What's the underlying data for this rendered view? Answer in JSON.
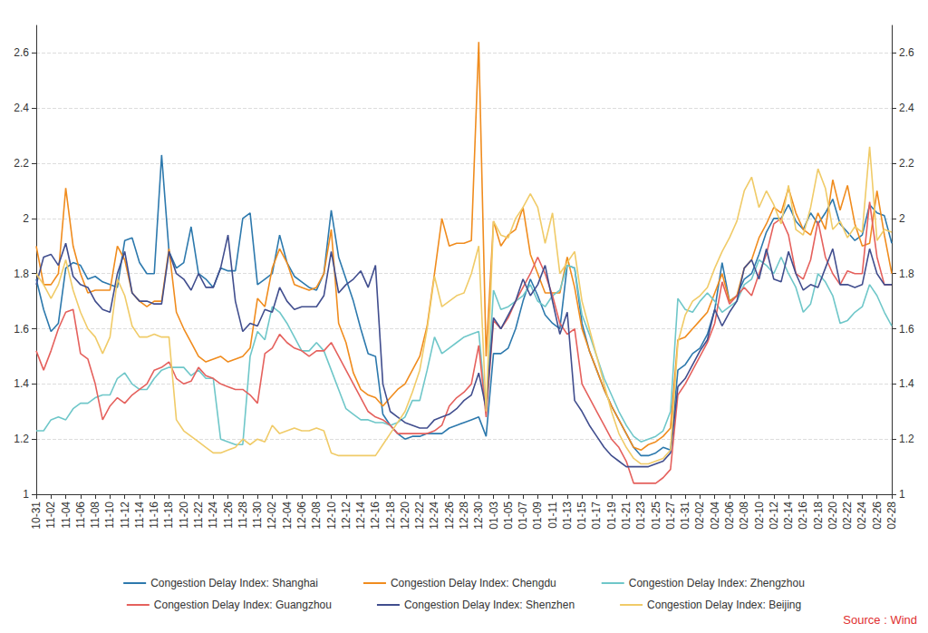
{
  "chart_data": {
    "type": "line",
    "annotation": "Source : Wind",
    "categories": [
      "10-31",
      null,
      "11-02",
      null,
      "11-04",
      null,
      "11-06",
      null,
      "11-08",
      null,
      "11-10",
      null,
      "11-12",
      null,
      "11-14",
      null,
      "11-16",
      null,
      "11-18",
      null,
      "11-20",
      null,
      "11-22",
      null,
      "11-24",
      null,
      "11-26",
      null,
      "11-28",
      null,
      "11-30",
      null,
      "12-02",
      null,
      "12-04",
      null,
      "12-06",
      null,
      "12-08",
      null,
      "12-10",
      null,
      "12-12",
      null,
      "12-14",
      null,
      "12-16",
      null,
      "12-18",
      null,
      "12-20",
      null,
      "12-22",
      null,
      "12-24",
      null,
      "12-26",
      null,
      "12-28",
      null,
      "12-30",
      null,
      "01-03",
      null,
      "01-05",
      null,
      "01-07",
      null,
      "01-09",
      null,
      "01-11",
      null,
      "01-13",
      null,
      "01-15",
      null,
      "01-17",
      null,
      "01-19",
      null,
      "01-21",
      null,
      "01-23",
      null,
      "01-25",
      null,
      "01-27",
      null,
      "01-31",
      null,
      "02-02",
      null,
      "02-04",
      null,
      "02-06",
      null,
      "02-08",
      null,
      "02-10",
      null,
      "02-12",
      null,
      "02-14",
      null,
      "02-16",
      null,
      "02-18",
      null,
      "02-20",
      null,
      "02-22",
      null,
      "02-24",
      null,
      "02-26",
      null,
      "02-28"
    ],
    "series": [
      {
        "name": "Congestion Delay Index: Shanghai",
        "color": "#2d79ad",
        "values": [
          1.78,
          1.67,
          1.59,
          1.62,
          1.82,
          1.84,
          1.83,
          1.78,
          1.79,
          1.77,
          1.76,
          1.75,
          1.92,
          1.93,
          1.84,
          1.8,
          1.8,
          2.23,
          1.88,
          1.82,
          1.84,
          1.97,
          1.8,
          1.78,
          1.75,
          1.82,
          1.81,
          1.81,
          2.0,
          2.02,
          1.76,
          1.78,
          1.8,
          1.94,
          1.84,
          1.79,
          1.77,
          1.75,
          1.74,
          1.8,
          2.03,
          1.86,
          1.78,
          1.7,
          1.6,
          1.51,
          1.5,
          1.29,
          1.25,
          1.22,
          1.2,
          1.21,
          1.21,
          1.22,
          1.22,
          1.22,
          1.24,
          1.25,
          1.26,
          1.27,
          1.28,
          1.21,
          1.51,
          1.51,
          1.53,
          1.6,
          1.7,
          1.78,
          1.72,
          1.65,
          1.62,
          1.6,
          1.83,
          1.82,
          1.62,
          1.52,
          1.45,
          1.38,
          1.32,
          1.27,
          1.22,
          1.17,
          1.14,
          1.14,
          1.15,
          1.17,
          1.16,
          1.45,
          1.47,
          1.51,
          1.53,
          1.58,
          1.67,
          1.84,
          1.7,
          1.72,
          1.78,
          1.8,
          1.87,
          1.95,
          2.0,
          2.0,
          2.05,
          1.99,
          1.96,
          2.02,
          1.98,
          2.02,
          2.07,
          1.98,
          1.95,
          1.92,
          1.94,
          2.05,
          2.02,
          2.01,
          1.91
        ]
      },
      {
        "name": "Congestion Delay Index: Chengdu",
        "color": "#f08c1e",
        "values": [
          1.9,
          1.76,
          1.76,
          1.8,
          2.11,
          1.9,
          1.8,
          1.73,
          1.74,
          1.74,
          1.74,
          1.9,
          1.85,
          1.73,
          1.7,
          1.68,
          1.7,
          1.7,
          1.89,
          1.66,
          1.6,
          1.55,
          1.5,
          1.48,
          1.49,
          1.5,
          1.48,
          1.49,
          1.5,
          1.53,
          1.71,
          1.68,
          1.82,
          1.89,
          1.84,
          1.76,
          1.75,
          1.74,
          1.75,
          1.8,
          1.96,
          1.62,
          1.55,
          1.44,
          1.38,
          1.36,
          1.35,
          1.32,
          1.35,
          1.38,
          1.4,
          1.45,
          1.5,
          1.61,
          1.8,
          2.0,
          1.9,
          1.91,
          1.91,
          1.92,
          2.64,
          1.5,
          1.99,
          1.9,
          1.94,
          1.96,
          2.04,
          1.87,
          1.8,
          1.73,
          1.73,
          1.73,
          1.86,
          1.75,
          1.6,
          1.52,
          1.45,
          1.38,
          1.32,
          1.27,
          1.22,
          1.17,
          1.16,
          1.18,
          1.19,
          1.21,
          1.24,
          1.56,
          1.57,
          1.6,
          1.63,
          1.66,
          1.73,
          1.8,
          1.7,
          1.72,
          1.82,
          1.85,
          1.93,
          1.98,
          2.04,
          2.02,
          2.11,
          2.02,
          1.96,
          1.94,
          2.02,
          1.96,
          2.14,
          2.03,
          2.12,
          1.98,
          1.9,
          1.91,
          2.1,
          1.94,
          1.8
        ]
      },
      {
        "name": "Congestion Delay Index: Zhengzhou",
        "color": "#6fc7c9",
        "values": [
          1.23,
          1.23,
          1.27,
          1.28,
          1.27,
          1.31,
          1.33,
          1.33,
          1.35,
          1.36,
          1.36,
          1.42,
          1.44,
          1.4,
          1.38,
          1.38,
          1.42,
          1.45,
          1.46,
          1.46,
          1.46,
          1.43,
          1.45,
          1.42,
          1.42,
          1.2,
          1.19,
          1.18,
          1.18,
          1.5,
          1.59,
          1.56,
          1.68,
          1.66,
          1.62,
          1.57,
          1.52,
          1.52,
          1.55,
          1.52,
          1.45,
          1.38,
          1.31,
          1.29,
          1.27,
          1.27,
          1.26,
          1.26,
          1.25,
          1.26,
          1.28,
          1.34,
          1.34,
          1.45,
          1.57,
          1.51,
          1.53,
          1.55,
          1.57,
          1.58,
          1.59,
          1.3,
          1.74,
          1.67,
          1.68,
          1.7,
          1.72,
          1.76,
          1.7,
          1.68,
          1.72,
          1.74,
          1.83,
          1.82,
          1.65,
          1.58,
          1.5,
          1.42,
          1.36,
          1.3,
          1.25,
          1.21,
          1.19,
          1.2,
          1.21,
          1.23,
          1.3,
          1.71,
          1.67,
          1.66,
          1.7,
          1.73,
          1.7,
          1.66,
          1.68,
          1.7,
          1.76,
          1.78,
          1.85,
          1.83,
          1.8,
          1.86,
          1.8,
          1.75,
          1.66,
          1.69,
          1.8,
          1.77,
          1.72,
          1.62,
          1.63,
          1.66,
          1.68,
          1.76,
          1.72,
          1.66,
          1.61
        ]
      },
      {
        "name": "Congestion Delay Index: Guangzhou",
        "color": "#e5615d",
        "values": [
          1.52,
          1.45,
          1.52,
          1.6,
          1.66,
          1.67,
          1.51,
          1.49,
          1.4,
          1.27,
          1.32,
          1.35,
          1.33,
          1.36,
          1.38,
          1.4,
          1.45,
          1.46,
          1.48,
          1.42,
          1.4,
          1.41,
          1.46,
          1.43,
          1.42,
          1.4,
          1.39,
          1.38,
          1.38,
          1.36,
          1.33,
          1.51,
          1.53,
          1.58,
          1.55,
          1.53,
          1.52,
          1.5,
          1.52,
          1.52,
          1.55,
          1.5,
          1.45,
          1.4,
          1.35,
          1.3,
          1.28,
          1.27,
          1.25,
          1.22,
          1.22,
          1.22,
          1.22,
          1.22,
          1.23,
          1.25,
          1.32,
          1.35,
          1.37,
          1.4,
          1.54,
          1.28,
          1.63,
          1.6,
          1.64,
          1.7,
          1.75,
          1.8,
          1.86,
          1.8,
          1.72,
          1.62,
          1.58,
          1.6,
          1.4,
          1.35,
          1.3,
          1.25,
          1.2,
          1.17,
          1.12,
          1.04,
          1.04,
          1.04,
          1.04,
          1.06,
          1.09,
          1.36,
          1.4,
          1.45,
          1.5,
          1.55,
          1.62,
          1.77,
          1.69,
          1.72,
          1.75,
          1.72,
          1.8,
          1.87,
          1.98,
          2.0,
          1.94,
          1.8,
          1.78,
          1.85,
          1.99,
          1.86,
          1.8,
          1.76,
          1.81,
          1.8,
          1.8,
          2.06,
          1.86,
          1.76,
          1.76
        ]
      },
      {
        "name": "Congestion Delay Index: Shenzhen",
        "color": "#414e8e",
        "values": [
          1.76,
          1.86,
          1.87,
          1.83,
          1.91,
          1.79,
          1.76,
          1.75,
          1.7,
          1.67,
          1.66,
          1.8,
          1.88,
          1.73,
          1.7,
          1.7,
          1.69,
          1.69,
          1.88,
          1.8,
          1.78,
          1.74,
          1.8,
          1.75,
          1.75,
          1.82,
          1.94,
          1.7,
          1.59,
          1.62,
          1.61,
          1.67,
          1.66,
          1.75,
          1.7,
          1.67,
          1.68,
          1.68,
          1.68,
          1.72,
          1.88,
          1.73,
          1.76,
          1.78,
          1.81,
          1.75,
          1.83,
          1.4,
          1.3,
          1.28,
          1.26,
          1.25,
          1.24,
          1.24,
          1.27,
          1.28,
          1.29,
          1.31,
          1.34,
          1.36,
          1.44,
          1.31,
          1.64,
          1.6,
          1.65,
          1.7,
          1.78,
          1.72,
          1.76,
          1.83,
          1.7,
          1.58,
          1.66,
          1.34,
          1.3,
          1.25,
          1.21,
          1.17,
          1.14,
          1.12,
          1.1,
          1.1,
          1.1,
          1.1,
          1.11,
          1.12,
          1.15,
          1.39,
          1.42,
          1.47,
          1.52,
          1.56,
          1.67,
          1.61,
          1.66,
          1.7,
          1.82,
          1.85,
          1.78,
          1.89,
          1.78,
          1.77,
          1.88,
          1.8,
          1.74,
          1.76,
          1.75,
          1.82,
          1.89,
          1.76,
          1.76,
          1.75,
          1.76,
          1.89,
          1.8,
          1.76,
          1.76
        ]
      },
      {
        "name": "Congestion Delay Index: Beijing",
        "color": "#f0cb68",
        "values": [
          1.8,
          1.76,
          1.71,
          1.76,
          1.85,
          1.74,
          1.66,
          1.6,
          1.57,
          1.51,
          1.57,
          1.78,
          1.72,
          1.61,
          1.57,
          1.57,
          1.58,
          1.57,
          1.57,
          1.27,
          1.23,
          1.21,
          1.19,
          1.17,
          1.15,
          1.15,
          1.16,
          1.17,
          1.2,
          1.18,
          1.2,
          1.19,
          1.25,
          1.22,
          1.23,
          1.24,
          1.23,
          1.23,
          1.24,
          1.23,
          1.15,
          1.14,
          1.14,
          1.14,
          1.14,
          1.14,
          1.14,
          1.18,
          1.22,
          1.26,
          1.3,
          1.37,
          1.45,
          1.6,
          1.79,
          1.68,
          1.7,
          1.72,
          1.73,
          1.8,
          1.9,
          1.3,
          1.99,
          1.94,
          1.93,
          2.0,
          2.04,
          2.09,
          2.04,
          1.91,
          2.02,
          1.8,
          1.84,
          1.88,
          1.7,
          1.6,
          1.5,
          1.4,
          1.3,
          1.22,
          1.17,
          1.13,
          1.11,
          1.11,
          1.12,
          1.13,
          1.16,
          1.55,
          1.65,
          1.7,
          1.72,
          1.75,
          1.82,
          1.88,
          1.93,
          1.99,
          2.1,
          2.15,
          2.04,
          2.1,
          2.05,
          1.98,
          2.12,
          1.96,
          1.94,
          2.04,
          2.18,
          2.11,
          1.96,
          1.99,
          1.93,
          1.97,
          1.95,
          2.26,
          1.92,
          1.96,
          1.95
        ]
      }
    ],
    "ylim": [
      1,
      2.7
    ],
    "yticks": [
      1,
      1.2,
      1.4,
      1.6,
      1.8,
      2,
      2.2,
      2.4,
      2.6
    ],
    "y2lim": [
      1,
      2.7
    ],
    "y2ticks": [
      1,
      1.2,
      1.4,
      1.6,
      1.8,
      2,
      2.2,
      2.4,
      2.6
    ],
    "grid": true,
    "legend": "bottom"
  }
}
